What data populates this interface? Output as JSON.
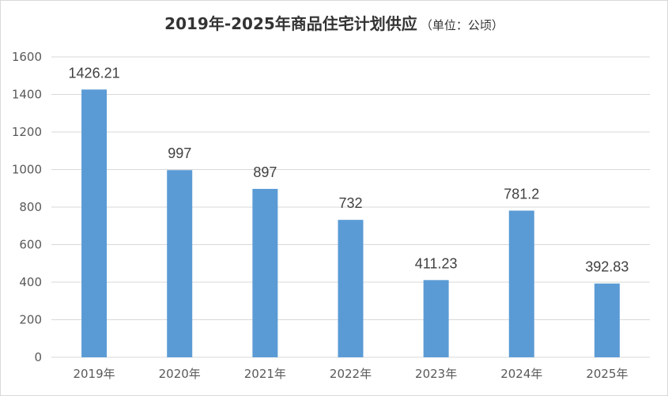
{
  "chart_data": {
    "type": "bar",
    "title": "2019年-2025年商品住宅计划供应",
    "subtitle": "（单位：公顷）",
    "categories": [
      "2019年",
      "2020年",
      "2021年",
      "2022年",
      "2023年",
      "2024年",
      "2025年"
    ],
    "values": [
      1426.21,
      997,
      897,
      732,
      411.23,
      781.2,
      392.83
    ],
    "data_labels": [
      "1426.21",
      "997",
      "897",
      "732",
      "411.23",
      "781.2",
      "392.83"
    ],
    "ylim": [
      0,
      1600
    ],
    "yticks": [
      "0",
      "200",
      "400",
      "600",
      "800",
      "1000",
      "1200",
      "1400",
      "1600"
    ],
    "xlabel": "",
    "ylabel": "",
    "grid": true,
    "legend": "none",
    "bar_color": "#5b9bd5",
    "grid_color": "#d9d9d9"
  }
}
